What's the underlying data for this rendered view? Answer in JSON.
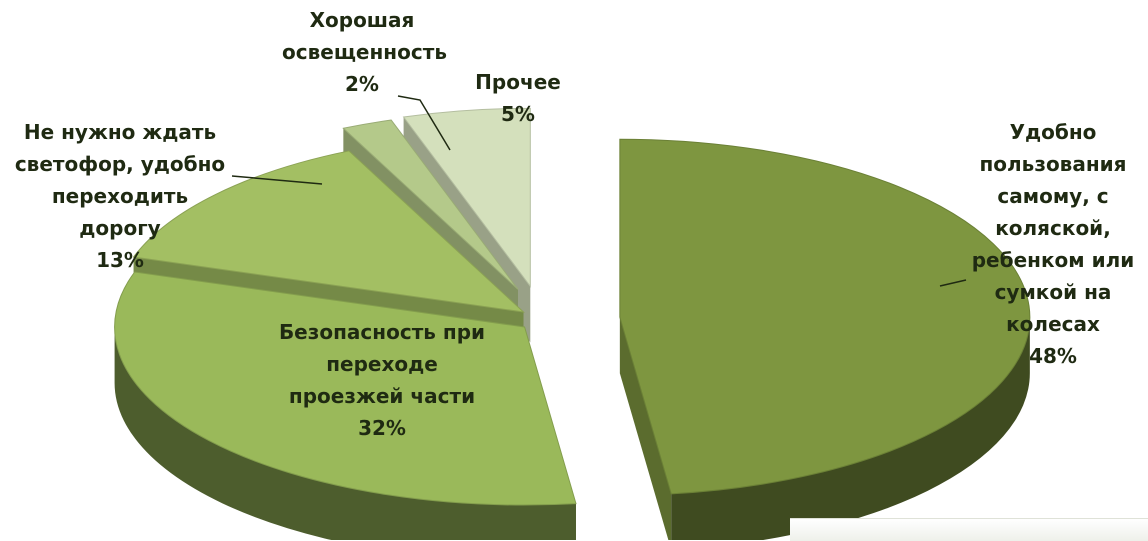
{
  "chart_data": {
    "type": "pie",
    "title": "",
    "slices": [
      {
        "label_lines": [
          "Удобно",
          "пользования",
          "самому, с",
          "коляской,",
          "ребенком или",
          "сумкой на",
          "колесах"
        ],
        "percent": "48%",
        "value": 48,
        "color": "#7e9640"
      },
      {
        "label_lines": [
          "Безопасность при",
          "переходе",
          "проезжей части"
        ],
        "percent": "32%",
        "value": 32,
        "color": "#9ab95a"
      },
      {
        "label_lines": [
          "Не нужно ждать",
          "светофор, удобно",
          "переходить",
          "дорогу"
        ],
        "percent": "13%",
        "value": 13,
        "color": "#a3bf63"
      },
      {
        "label_lines": [
          "Хорошая",
          "освещенность"
        ],
        "percent": "2%",
        "value": 2,
        "color": "#b4c98a"
      },
      {
        "label_lines": [
          "Прочее"
        ],
        "percent": "5%",
        "value": 5,
        "color": "#d4e0bc"
      }
    ]
  }
}
